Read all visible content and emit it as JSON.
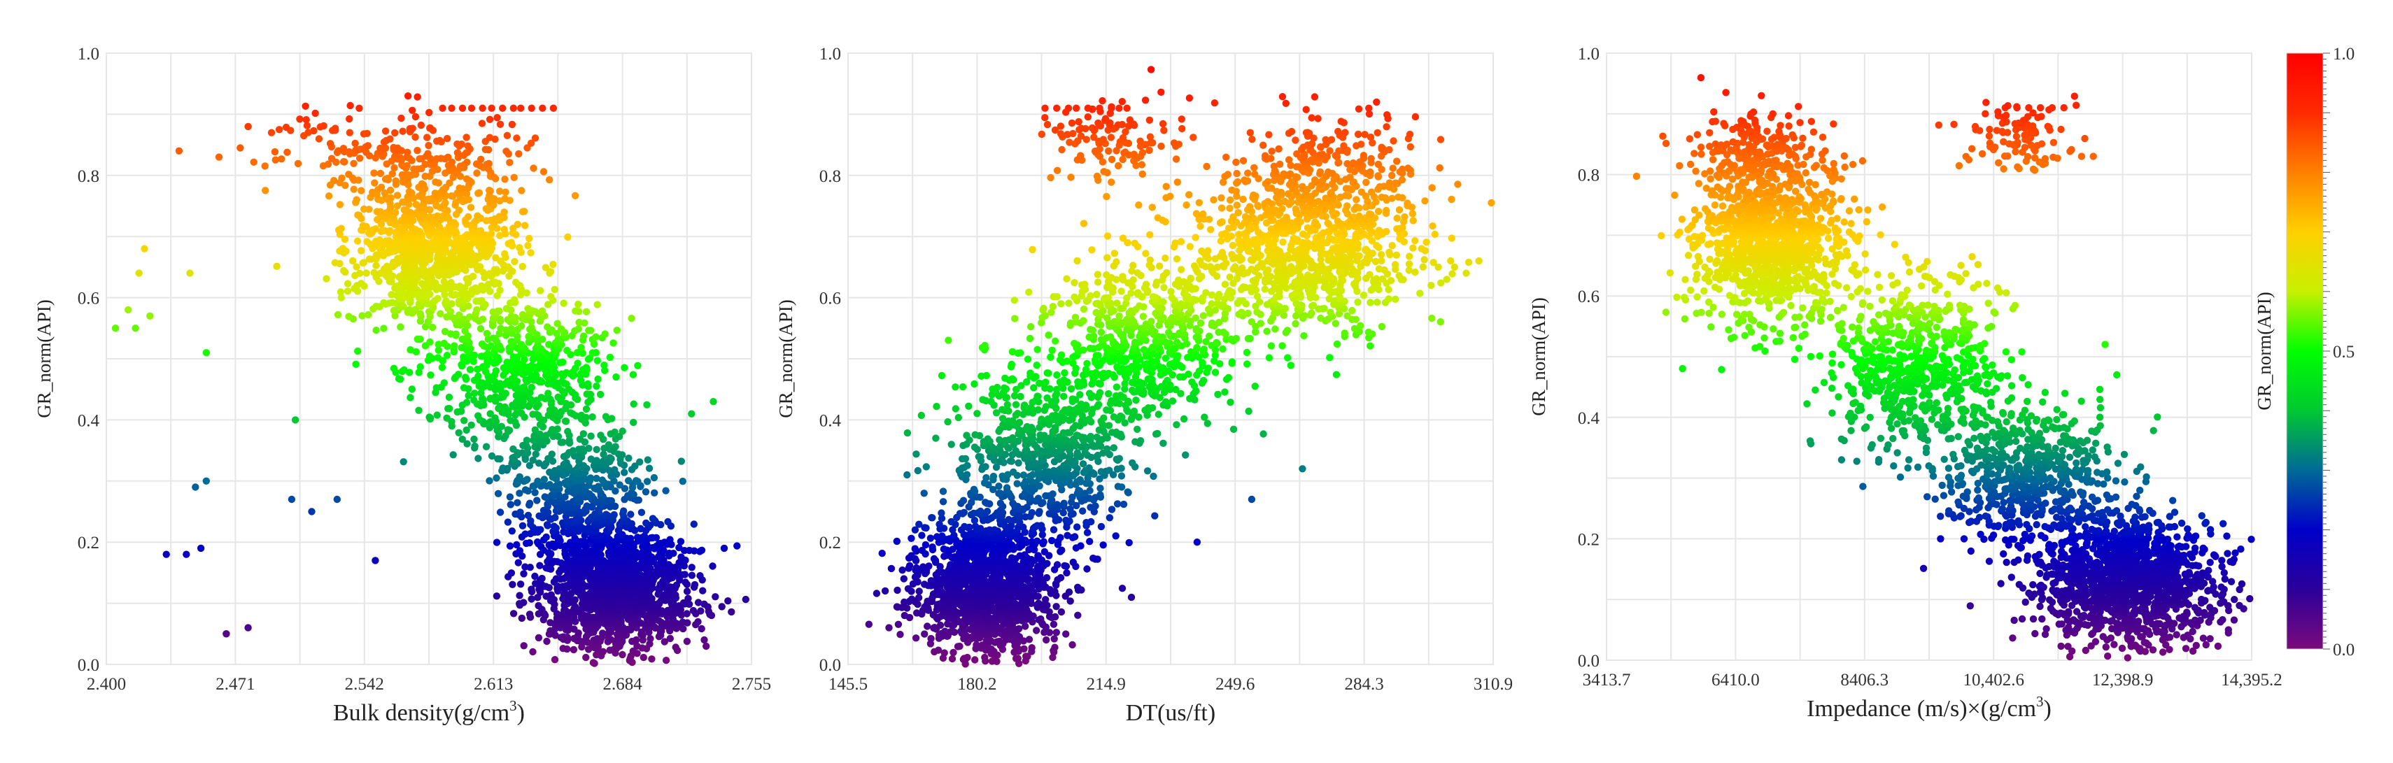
{
  "chart_data": [
    {
      "type": "scatter",
      "xlabel": "Bulk density(g/cm3)",
      "xlabel_base": "Bulk density(g/cm",
      "xlabel_sup": "3",
      "xlabel_tail": ")",
      "ylabel": "GR_norm(API)",
      "xlim": [
        2.4,
        2.755
      ],
      "ylim": [
        0.0,
        1.0
      ],
      "xticks": [
        "2.400",
        "2.471",
        "2.542",
        "2.613",
        "2.684",
        "2.755"
      ],
      "yticks": [
        "0.0",
        "0.2",
        "0.4",
        "0.6",
        "0.8",
        "1.0"
      ],
      "grid": true,
      "color_by": "y",
      "clusters": [
        {
          "x": 2.58,
          "y": 0.68,
          "sx": 0.022,
          "sy": 0.07,
          "n": 1000
        },
        {
          "x": 2.63,
          "y": 0.47,
          "sx": 0.025,
          "sy": 0.07,
          "n": 650
        },
        {
          "x": 2.68,
          "y": 0.12,
          "sx": 0.022,
          "sy": 0.055,
          "n": 1250
        },
        {
          "x": 2.66,
          "y": 0.27,
          "sx": 0.02,
          "sy": 0.05,
          "n": 450
        },
        {
          "x": 2.56,
          "y": 0.84,
          "sx": 0.04,
          "sy": 0.035,
          "n": 180
        }
      ],
      "points": [
        [
          2.421,
          0.68
        ],
        [
          2.418,
          0.64
        ],
        [
          2.412,
          0.58
        ],
        [
          2.405,
          0.55
        ],
        [
          2.416,
          0.55
        ],
        [
          2.424,
          0.57
        ],
        [
          2.446,
          0.64
        ],
        [
          2.455,
          0.51
        ],
        [
          2.433,
          0.18
        ],
        [
          2.444,
          0.18
        ],
        [
          2.466,
          0.05
        ],
        [
          2.452,
          0.19
        ],
        [
          2.449,
          0.29
        ],
        [
          2.455,
          0.3
        ],
        [
          2.466,
          0.05
        ],
        [
          2.478,
          0.06
        ],
        [
          2.504,
          0.4
        ],
        [
          2.502,
          0.27
        ],
        [
          2.513,
          0.25
        ],
        [
          2.44,
          0.84
        ],
        [
          2.462,
          0.83
        ],
        [
          2.478,
          0.88
        ],
        [
          2.527,
          0.27
        ],
        [
          2.548,
          0.17
        ],
        [
          2.566,
          0.93
        ],
        [
          2.585,
          0.91
        ],
        [
          2.59,
          0.91
        ],
        [
          2.596,
          0.91
        ],
        [
          2.601,
          0.91
        ],
        [
          2.607,
          0.91
        ],
        [
          2.612,
          0.91
        ],
        [
          2.618,
          0.91
        ],
        [
          2.624,
          0.91
        ],
        [
          2.628,
          0.91
        ],
        [
          2.634,
          0.91
        ],
        [
          2.64,
          0.91
        ],
        [
          2.646,
          0.91
        ],
        [
          2.734,
          0.43
        ],
        [
          2.722,
          0.41
        ],
        [
          2.74,
          0.19
        ],
        [
          2.729,
          0.04
        ],
        [
          2.733,
          0.08
        ]
      ]
    },
    {
      "type": "scatter",
      "xlabel": "DT(us/ft)",
      "ylabel": "GR_norm(API)",
      "xlim": [
        145.5,
        310.9
      ],
      "ylim": [
        0.0,
        1.0
      ],
      "xticks": [
        "145.5",
        "180.2",
        "214.9",
        "249.6",
        "284.3",
        "310.9"
      ],
      "yticks": [
        "0.0",
        "0.2",
        "0.4",
        "0.6",
        "0.8",
        "1.0"
      ],
      "grid": true,
      "color_by": "y",
      "clusters": [
        {
          "x": 181,
          "y": 0.13,
          "sx": 9,
          "sy": 0.06,
          "n": 1300
        },
        {
          "x": 197,
          "y": 0.35,
          "sx": 11,
          "sy": 0.08,
          "n": 700
        },
        {
          "x": 222,
          "y": 0.53,
          "sx": 12,
          "sy": 0.07,
          "n": 600
        },
        {
          "x": 263,
          "y": 0.69,
          "sx": 15,
          "sy": 0.07,
          "n": 1000
        },
        {
          "x": 269,
          "y": 0.83,
          "sx": 10,
          "sy": 0.04,
          "n": 130
        },
        {
          "x": 212,
          "y": 0.86,
          "sx": 9,
          "sy": 0.035,
          "n": 120
        }
      ],
      "points": [
        [
          156,
          0.06
        ],
        [
          160,
          0.08
        ],
        [
          165,
          0.28
        ],
        [
          168,
          0.37
        ],
        [
          172,
          0.36
        ],
        [
          196,
          0.91
        ],
        [
          199,
          0.91
        ],
        [
          202,
          0.91
        ],
        [
          204,
          0.91
        ],
        [
          207,
          0.91
        ],
        [
          210,
          0.91
        ],
        [
          213,
          0.91
        ],
        [
          215,
          0.91
        ],
        [
          217,
          0.91
        ],
        [
          262,
          0.32
        ],
        [
          249,
          0.27
        ],
        [
          235,
          0.2
        ],
        [
          281,
          0.92
        ],
        [
          279,
          0.91
        ],
        [
          304,
          0.64
        ],
        [
          299,
          0.63
        ],
        [
          295,
          0.62
        ],
        [
          301,
          0.65
        ]
      ]
    },
    {
      "type": "scatter",
      "xlabel": "Impedance (m/s)×(g/cm3)",
      "xlabel_base": "Impedance (m/s)×(g/cm",
      "xlabel_sup": "3",
      "xlabel_tail": ")",
      "ylabel": "GR_norm(API)",
      "xlim": [
        3413.7,
        14395.2
      ],
      "ylim": [
        0.0,
        1.0
      ],
      "xticks": [
        "3413.7",
        "6410.0",
        "8406.3",
        "10,402.6",
        "12,398.9",
        "14,395.2"
      ],
      "yticks": [
        "0.0",
        "0.2",
        "0.4",
        "0.6",
        "0.8",
        "1.0"
      ],
      "grid": true,
      "color_by": "y",
      "clusters": [
        {
          "x": 6200,
          "y": 0.69,
          "sx": 650,
          "sy": 0.07,
          "n": 1100
        },
        {
          "x": 8700,
          "y": 0.49,
          "sx": 750,
          "sy": 0.07,
          "n": 650
        },
        {
          "x": 10600,
          "y": 0.3,
          "sx": 750,
          "sy": 0.06,
          "n": 600
        },
        {
          "x": 12300,
          "y": 0.13,
          "sx": 750,
          "sy": 0.055,
          "n": 1250
        },
        {
          "x": 5900,
          "y": 0.84,
          "sx": 450,
          "sy": 0.035,
          "n": 150
        },
        {
          "x": 10400,
          "y": 0.86,
          "sx": 500,
          "sy": 0.03,
          "n": 100
        }
      ],
      "points": [
        [
          6050,
          0.93
        ],
        [
          9100,
          0.2
        ],
        [
          8300,
          0.32
        ],
        [
          9500,
          0.2
        ],
        [
          8900,
          0.32
        ],
        [
          10200,
          0.91
        ],
        [
          10400,
          0.91
        ],
        [
          10600,
          0.91
        ],
        [
          10800,
          0.91
        ],
        [
          11000,
          0.91
        ],
        [
          11200,
          0.91
        ],
        [
          11500,
          0.83
        ],
        [
          11700,
          0.83
        ],
        [
          11900,
          0.52
        ],
        [
          12100,
          0.47
        ],
        [
          7900,
          0.4
        ],
        [
          13700,
          0.07
        ],
        [
          14000,
          0.05
        ],
        [
          14100,
          0.1
        ]
      ]
    }
  ],
  "colorbar": {
    "label": "GR_norm(API)",
    "ticks": [
      "0.0",
      "0.5",
      "1.0"
    ],
    "colormap": [
      "#7b0a7b",
      "#2c009a",
      "#0000c8",
      "#006a96",
      "#00c832",
      "#00ff00",
      "#c8f000",
      "#ffd000",
      "#ff8000",
      "#ff2a00",
      "#ff0000"
    ],
    "range": [
      0.0,
      1.0
    ]
  }
}
